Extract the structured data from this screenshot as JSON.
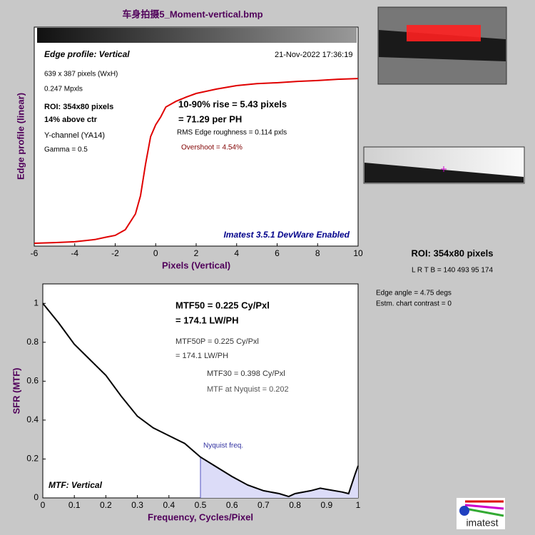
{
  "title": "车身拍摄5_Moment-vertical.bmp",
  "side_info": {
    "roi": "ROI:  354x80 pixels",
    "lrtb": "L R  T B = 140 493  95 174",
    "edge_angle": "Edge angle = 4.75 degs",
    "contrast": "Estm. chart contrast = 0"
  },
  "logo": "imatest",
  "chart_data": [
    {
      "type": "line",
      "xlabel": "Pixels (Vertical)",
      "ylabel": "Edge profile (linear)",
      "x": [
        -6,
        -5,
        -4,
        -3,
        -2.5,
        -2,
        -1.5,
        -1,
        -0.75,
        -0.5,
        -0.25,
        0,
        0.25,
        0.5,
        1,
        1.5,
        2,
        3,
        4,
        5,
        6,
        7,
        8,
        9,
        10
      ],
      "series": [
        {
          "name": "Edge profile: Vertical",
          "color": "#e00000",
          "values": [
            0.013,
            0.016,
            0.02,
            0.03,
            0.04,
            0.049,
            0.075,
            0.147,
            0.23,
            0.375,
            0.5,
            0.554,
            0.59,
            0.635,
            0.661,
            0.68,
            0.697,
            0.717,
            0.733,
            0.742,
            0.746,
            0.752,
            0.756,
            0.762,
            0.765
          ]
        }
      ],
      "xlim": [
        -6,
        10
      ],
      "xticks": [
        -6,
        -4,
        -2,
        0,
        2,
        4,
        6,
        8,
        10
      ],
      "ylim": [
        0,
        1
      ],
      "annotations": [
        "21-Nov-2022 17:36:19",
        "639 x 387 pixels (WxH)",
        "0.247 Mpxls",
        "ROI:  354x80 pixels",
        "14% above ctr",
        "Y-channel  (YA14)",
        "Gamma = 0.5",
        "10-90% rise = 5.43 pixels",
        "= 71.29 per PH",
        "RMS Edge roughness = 0.114 pxls",
        "Overshoot = 4.54%",
        "Imatest 3.5.1 DevWare Enabled"
      ]
    },
    {
      "type": "line",
      "xlabel": "Frequency, Cycles/Pixel",
      "ylabel": "SFR (MTF)",
      "x": [
        0,
        0.05,
        0.1,
        0.15,
        0.2,
        0.25,
        0.3,
        0.35,
        0.4,
        0.45,
        0.5,
        0.55,
        0.6,
        0.65,
        0.7,
        0.75,
        0.78,
        0.8,
        0.85,
        0.88,
        0.9,
        0.95,
        0.97,
        0.99,
        1
      ],
      "series": [
        {
          "name": "MTF: Vertical",
          "color": "#000000",
          "values": [
            1.0,
            0.9,
            0.79,
            0.71,
            0.63,
            0.52,
            0.42,
            0.36,
            0.32,
            0.28,
            0.21,
            0.16,
            0.11,
            0.066,
            0.037,
            0.022,
            0.007,
            0.022,
            0.037,
            0.05,
            0.044,
            0.03,
            0.022,
            0.12,
            0.165
          ]
        }
      ],
      "nyquist": {
        "value": 0.5,
        "label": "Nyquist freq."
      },
      "xlim": [
        0,
        1
      ],
      "xticks": [
        0,
        0.1,
        0.2,
        0.3,
        0.4,
        0.5,
        0.6,
        0.7,
        0.8,
        0.9,
        1
      ],
      "ylim": [
        0,
        1.1
      ],
      "yticks": [
        0,
        0.2,
        0.4,
        0.6,
        0.8,
        1
      ],
      "annotations": [
        "MTF50 = 0.225 Cy/Pxl",
        "= 174.1 LW/PH",
        "MTF50P = 0.225 Cy/Pxl",
        "= 174.1 LW/PH",
        "MTF30 = 0.398 Cy/Pxl",
        "MTF at Nyquist = 0.202"
      ]
    }
  ]
}
